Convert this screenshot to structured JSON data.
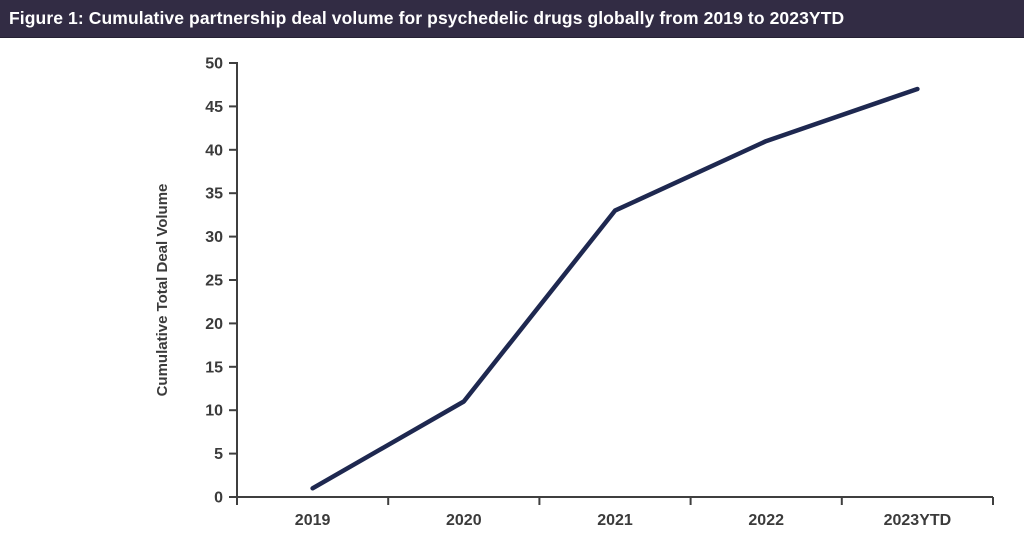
{
  "header": {
    "title": "Figure 1: Cumulative partnership deal volume for psychedelic drugs globally from 2019 to 2023YTD",
    "bg_color": "#322c44",
    "text_color": "#ffffff"
  },
  "chart_data": {
    "type": "line",
    "title": "Figure 1: Cumulative partnership deal volume for psychedelic drugs globally from 2019 to 2023YTD",
    "categories": [
      "2019",
      "2020",
      "2021",
      "2022",
      "2023YTD"
    ],
    "series": [
      {
        "name": "Cumulative Total Deal Volume",
        "values": [
          1,
          11,
          33,
          41,
          47
        ]
      }
    ],
    "xlabel": "",
    "ylabel": "Cumulative Total Deal Volume",
    "ylim": [
      0,
      50
    ],
    "ytick_step": 5,
    "grid": false,
    "legend": "none",
    "line_color": "#1e2850",
    "axis_color": "#3f3f3f"
  }
}
